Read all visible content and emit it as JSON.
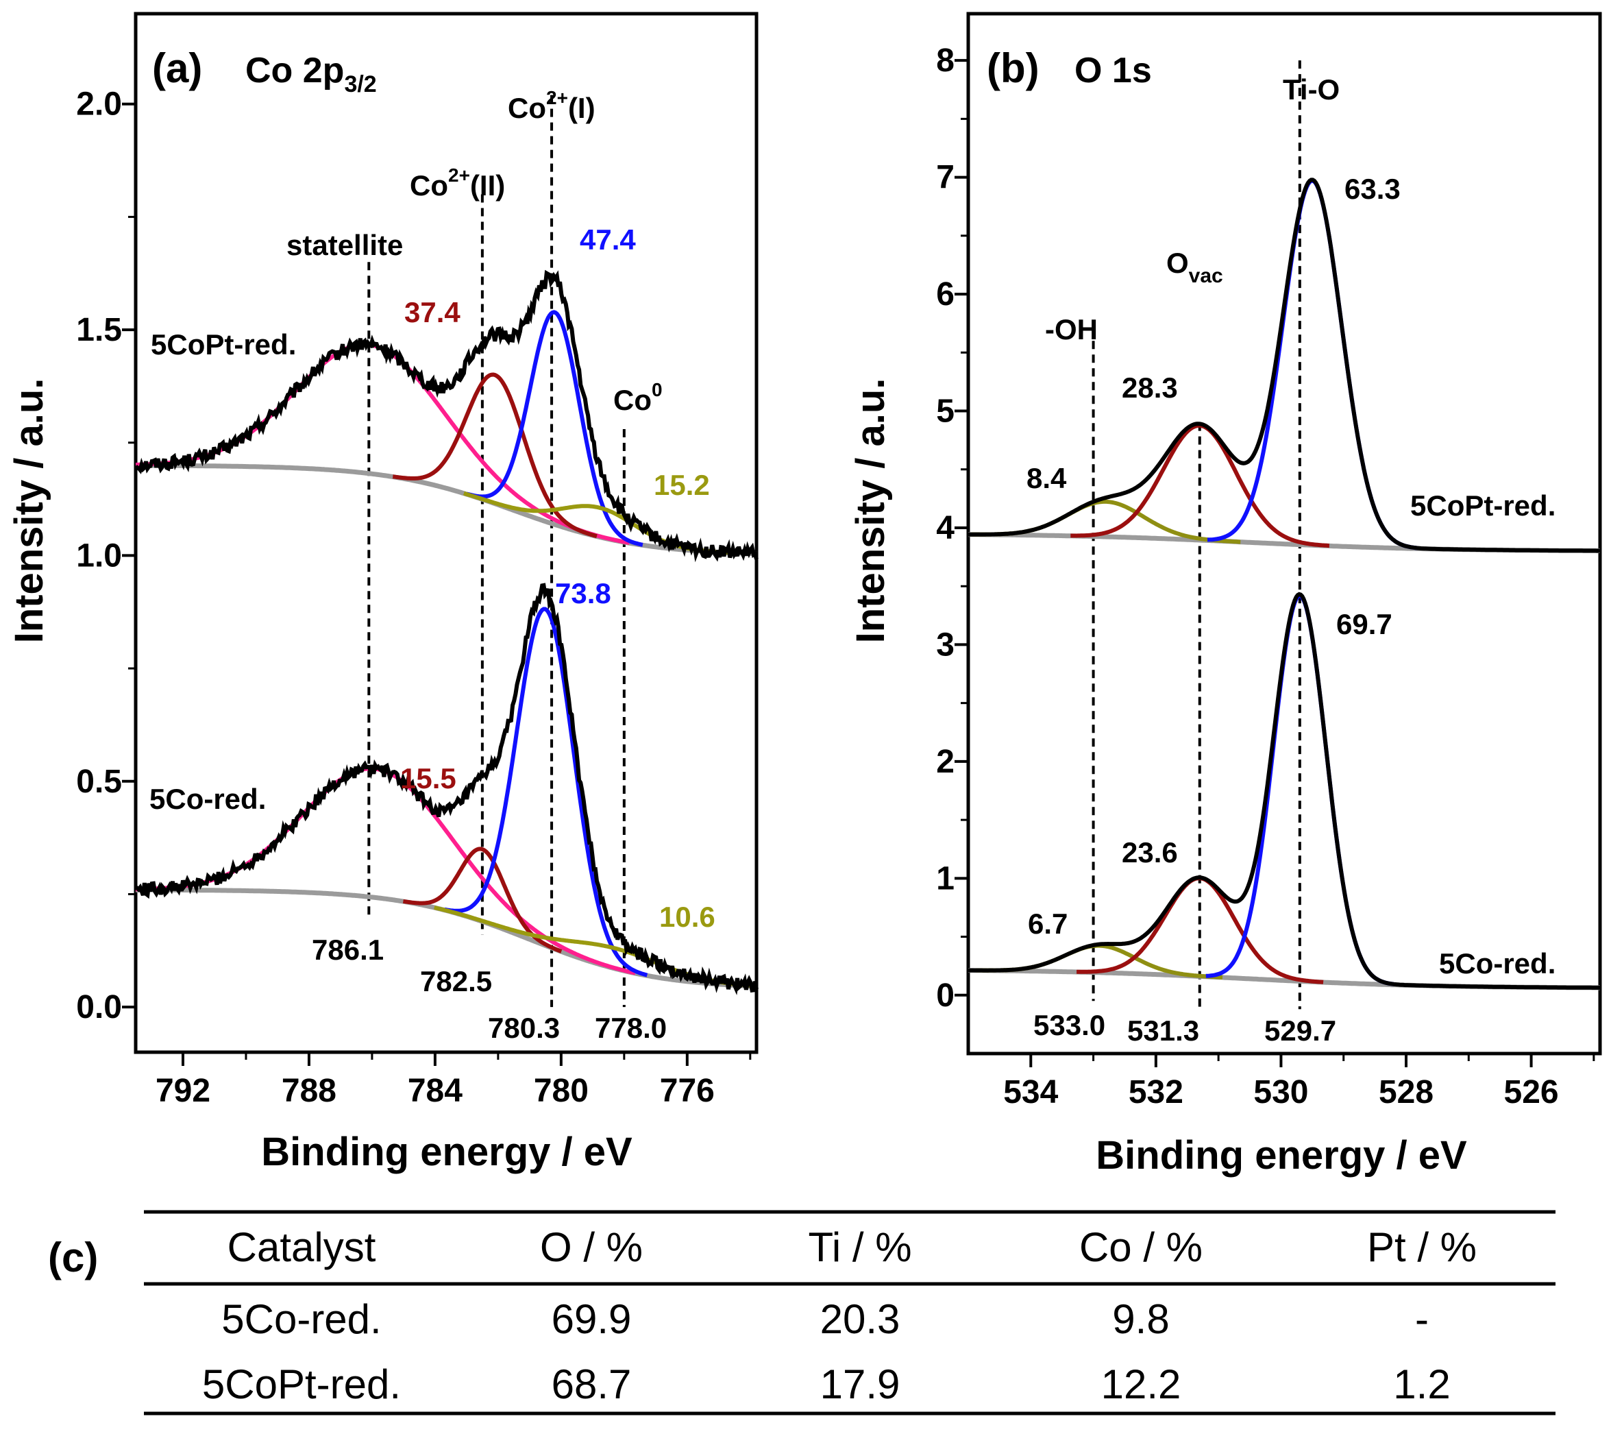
{
  "chart_data": [
    {
      "panel": "(a)",
      "type": "line",
      "title": "Co 2p3/2",
      "title_main": "Co 2p",
      "title_sub": "3/2",
      "xlabel": "Binding energy / eV",
      "ylabel": "Intensity / a.u.",
      "xlim": [
        793.5,
        773.8
      ],
      "ylim": [
        -0.1,
        2.2
      ],
      "xticks": [
        792,
        788,
        784,
        780,
        776
      ],
      "xtick_labels": [
        "792",
        "788",
        "784",
        "780",
        "776"
      ],
      "yticks": [
        0.0,
        0.5,
        1.0,
        1.5,
        2.0
      ],
      "ytick_labels": [
        "0.0",
        "0.5",
        "1.0",
        "1.5",
        "2.0"
      ],
      "samples": [
        {
          "name": "5CoPt-red.",
          "baseline": {
            "start": 1.2,
            "end": 1.0,
            "center": 781.5,
            "width": 2.0
          },
          "components": [
            {
              "name": "statellite",
              "center": 786.1,
              "height": 0.285,
              "sigma": 2.3,
              "color": "#ff1f8e",
              "area_percent": null
            },
            {
              "name": "Co2+(II)",
              "center": 782.1,
              "height": 0.285,
              "sigma": 0.9,
              "color": "#9b0f0f",
              "area_percent": "37.4"
            },
            {
              "name": "Co2+(I)",
              "center": 780.2,
              "height": 0.47,
              "sigma": 0.78,
              "color": "#1010ff",
              "area_percent": "47.4"
            },
            {
              "name": "Co0",
              "center": 778.8,
              "height": 0.065,
              "sigma": 1.2,
              "color": "#9a9a10",
              "area_percent": "15.2"
            }
          ]
        },
        {
          "name": "5Co-red.",
          "baseline": {
            "start": 0.26,
            "end": 0.04,
            "center": 781.0,
            "width": 2.0
          },
          "components": [
            {
              "name": "statellite",
              "center": 785.9,
              "height": 0.285,
              "sigma": 2.3,
              "color": "#ff1f8e",
              "area_percent": null
            },
            {
              "name": "Co2+(II)",
              "center": 782.5,
              "height": 0.16,
              "sigma": 0.7,
              "color": "#9b0f0f",
              "area_percent": "15.5"
            },
            {
              "name": "Co2+(I)",
              "center": 780.5,
              "height": 0.745,
              "sigma": 0.9,
              "color": "#1010ff",
              "area_percent": "73.8"
            },
            {
              "name": "Co0",
              "center": 778.3,
              "height": 0.045,
              "sigma": 1.6,
              "color": "#9a9a10",
              "area_percent": "10.6"
            }
          ]
        }
      ],
      "reference_lines": [
        786.1,
        782.5,
        780.3,
        778.0
      ],
      "reference_labels": [
        "786.1",
        "782.5",
        "780.3",
        "778.0"
      ],
      "line_names": [
        "statellite",
        "Co",
        "Co",
        "Co"
      ],
      "line_sups": [
        "",
        "2+",
        "2+",
        "0"
      ],
      "line_suffixes": [
        "",
        "(II)",
        "(I)",
        ""
      ],
      "sample_labels": [
        "5CoPt-red.",
        "5Co-red."
      ],
      "percent_labels": [
        "37.4",
        "47.4",
        "15.2",
        "15.5",
        "73.8",
        "10.6"
      ]
    },
    {
      "panel": "(b)",
      "type": "line",
      "title": "O 1s",
      "xlabel": "Binding energy / eV",
      "ylabel": "Intensity / a.u.",
      "xlim": [
        535.0,
        524.9
      ],
      "ylim": [
        -0.5,
        8.4
      ],
      "xticks": [
        534,
        532,
        530,
        528,
        526
      ],
      "xtick_labels": [
        "534",
        "532",
        "530",
        "528",
        "526"
      ],
      "yticks": [
        0,
        1,
        2,
        3,
        4,
        5,
        6,
        7,
        8
      ],
      "ytick_labels": [
        "0",
        "1",
        "2",
        "3",
        "4",
        "5",
        "6",
        "7",
        "8"
      ],
      "samples": [
        {
          "name": "5CoPt-red.",
          "baseline": {
            "start": 3.95,
            "end": 3.8,
            "center": 530.5,
            "width": 1.5
          },
          "components": [
            {
              "name": "-OH",
              "center": 532.8,
              "height": 0.3,
              "sigma": 0.6,
              "color": "#8f8f12",
              "area_percent": "8.4"
            },
            {
              "name": "Ovac",
              "center": 531.3,
              "height": 0.98,
              "sigma": 0.58,
              "color": "#9b0f0f",
              "area_percent": "28.3"
            },
            {
              "name": "Ti-O",
              "center": 529.5,
              "height": 3.12,
              "sigma": 0.47,
              "color": "#1010ff",
              "area_percent": "63.3"
            }
          ]
        },
        {
          "name": "5Co-red.",
          "baseline": {
            "start": 0.22,
            "end": 0.06,
            "center": 530.5,
            "width": 1.5
          },
          "components": [
            {
              "name": "-OH",
              "center": 532.9,
              "height": 0.23,
              "sigma": 0.55,
              "color": "#8f8f12",
              "area_percent": "6.7"
            },
            {
              "name": "Ovac",
              "center": 531.3,
              "height": 0.84,
              "sigma": 0.55,
              "color": "#9b0f0f",
              "area_percent": "23.6"
            },
            {
              "name": "Ti-O",
              "center": 529.7,
              "height": 3.3,
              "sigma": 0.42,
              "color": "#1010ff",
              "area_percent": "69.7"
            }
          ]
        }
      ],
      "reference_lines": [
        533.0,
        531.3,
        529.7
      ],
      "reference_labels": [
        "533.0",
        "531.3",
        "529.7"
      ],
      "line_names": [
        "-OH",
        "O",
        "Ti-O"
      ],
      "line_subs": [
        "",
        "vac",
        ""
      ],
      "sample_labels": [
        "5CoPt-red.",
        "5Co-red."
      ],
      "percent_labels": [
        "8.4",
        "28.3",
        "63.3",
        "6.7",
        "23.6",
        "69.7"
      ]
    },
    {
      "panel": "(c)",
      "type": "table",
      "columns": [
        "Catalyst",
        "O / %",
        "Ti / %",
        "Co / %",
        "Pt / %"
      ],
      "rows": [
        [
          "5Co-red.",
          "69.9",
          "20.3",
          "9.8",
          "-"
        ],
        [
          "5CoPt-red.",
          "68.7",
          "17.9",
          "12.2",
          "1.2"
        ]
      ]
    }
  ],
  "colors": {
    "measured": "#000000",
    "envelope_baseline": "#9b9b9b",
    "satellite": "#ff1f8e",
    "peak_II": "#9b0f0f",
    "peak_I": "#1010ff",
    "peak_0": "#9a9a10"
  }
}
